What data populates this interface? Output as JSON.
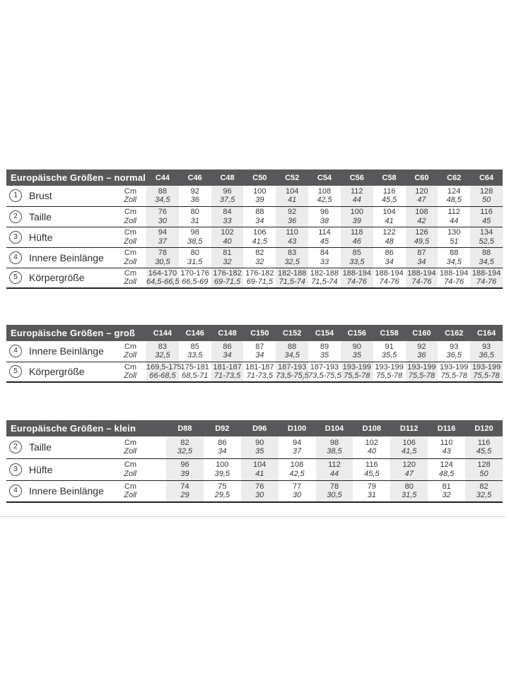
{
  "colors": {
    "header_bg": "#58585a",
    "header_text": "#ffffff",
    "column_shade": "#ececec",
    "rule_line": "#212123",
    "value_text": "#39393b",
    "divider_line": "#d8d8d8",
    "page_bg": "#ffffff"
  },
  "units": {
    "top": "Cm",
    "bottom": "Zoll"
  },
  "tables": [
    {
      "id": "normal",
      "title": "Europäische Größen – normal",
      "columns": [
        "C44",
        "C46",
        "C48",
        "C50",
        "C52",
        "C54",
        "C56",
        "C58",
        "C60",
        "C62",
        "C64"
      ],
      "rows": [
        {
          "num": "1",
          "label": "Brust",
          "cm": [
            "88",
            "92",
            "96",
            "100",
            "104",
            "108",
            "112",
            "116",
            "120",
            "124",
            "128"
          ],
          "zoll": [
            "34,5",
            "36",
            "37,5",
            "39",
            "41",
            "42,5",
            "44",
            "45,5",
            "47",
            "48,5",
            "50"
          ]
        },
        {
          "num": "2",
          "label": "Taille",
          "cm": [
            "76",
            "80",
            "84",
            "88",
            "92",
            "96",
            "100",
            "104",
            "108",
            "112",
            "116"
          ],
          "zoll": [
            "30",
            "31",
            "33",
            "34",
            "36",
            "38",
            "39",
            "41",
            "42",
            "44",
            "45"
          ]
        },
        {
          "num": "3",
          "label": "Hüfte",
          "cm": [
            "94",
            "98",
            "102",
            "106",
            "110",
            "114",
            "118",
            "122",
            "126",
            "130",
            "134"
          ],
          "zoll": [
            "37",
            "38,5",
            "40",
            "41,5",
            "43",
            "45",
            "46",
            "48",
            "49,5",
            "51",
            "52,5"
          ]
        },
        {
          "num": "4",
          "label": "Innere Beinlänge",
          "cm": [
            "78",
            "80",
            "81",
            "82",
            "83",
            "84",
            "85",
            "86",
            "87",
            "88",
            "88"
          ],
          "zoll": [
            "30,5",
            "31,5",
            "32",
            "32",
            "32,5",
            "33",
            "33,5",
            "34",
            "34",
            "34,5",
            "34,5"
          ]
        },
        {
          "num": "5",
          "label": "Körpergröße",
          "cm": [
            "164-170",
            "170-176",
            "176-182",
            "176-182",
            "182-188",
            "182-188",
            "188-194",
            "188-194",
            "188-194",
            "188-194",
            "188-194"
          ],
          "zoll": [
            "64,5-66,5",
            "66,5-69",
            "69-71,5",
            "69-71,5",
            "71,5-74",
            "71,5-74",
            "74-76",
            "74-76",
            "74-76",
            "74-76",
            "74-76"
          ]
        }
      ]
    },
    {
      "id": "gross",
      "title": "Europäische Größen – groß",
      "columns": [
        "C144",
        "C146",
        "C148",
        "C150",
        "C152",
        "C154",
        "C156",
        "C158",
        "C160",
        "C162",
        "C164"
      ],
      "rows": [
        {
          "num": "4",
          "label": "Innere Beinlänge",
          "cm": [
            "83",
            "85",
            "86",
            "87",
            "88",
            "89",
            "90",
            "91",
            "92",
            "93",
            "93"
          ],
          "zoll": [
            "32,5",
            "33,5",
            "34",
            "34",
            "34,5",
            "35",
            "35",
            "35,5",
            "36",
            "36,5",
            "36,5"
          ]
        },
        {
          "num": "5",
          "label": "Körpergröße",
          "cm": [
            "169,5-175",
            "175-181",
            "181-187",
            "181-187",
            "187-193",
            "187-193",
            "193-199",
            "193-199",
            "193-199",
            "193-199",
            "193-199"
          ],
          "zoll": [
            "66-68,5",
            "68,5-71",
            "71-73,5",
            "71-73,5",
            "73,5-75,5",
            "73,5-75,5",
            "75,5-78",
            "75,5-78",
            "75,5-78",
            "75,5-78",
            "75,5-78"
          ]
        }
      ]
    },
    {
      "id": "klein",
      "title": "Europäische Größen – klein",
      "columns": [
        "D88",
        "D92",
        "D96",
        "D100",
        "D104",
        "D108",
        "D112",
        "D116",
        "D120"
      ],
      "rows": [
        {
          "num": "2",
          "label": "Taille",
          "cm": [
            "82",
            "86",
            "90",
            "94",
            "98",
            "102",
            "106",
            "110",
            "116"
          ],
          "zoll": [
            "32,5",
            "34",
            "35",
            "37",
            "38,5",
            "40",
            "41,5",
            "43",
            "45,5"
          ]
        },
        {
          "num": "3",
          "label": "Hüfte",
          "cm": [
            "96",
            "100",
            "104",
            "108",
            "112",
            "116",
            "120",
            "124",
            "128"
          ],
          "zoll": [
            "39",
            "39,5",
            "41",
            "42,5",
            "44",
            "45,5",
            "47",
            "48,5",
            "50"
          ]
        },
        {
          "num": "4",
          "label": "Innere Beinlänge",
          "cm": [
            "74",
            "75",
            "76",
            "77",
            "78",
            "79",
            "80",
            "81",
            "82"
          ],
          "zoll": [
            "29",
            "29,5",
            "30",
            "30",
            "30,5",
            "31",
            "31,5",
            "32",
            "32,5"
          ]
        }
      ]
    }
  ]
}
